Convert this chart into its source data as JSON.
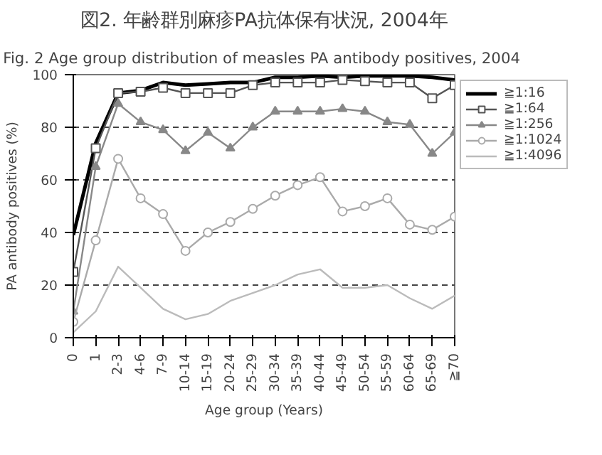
{
  "chart_data": {
    "type": "line",
    "title": "図2. 年齢群別麻疹PA抗体保有状況, 2004年",
    "subtitle": "Fig. 2  Age group distribution of measles PA antibody positives, 2004",
    "xlabel": "Age group (Years)",
    "ylabel": "PA antibody positives (%)",
    "categories": [
      "0",
      "1",
      "2-3",
      "4-6",
      "7-9",
      "10-14",
      "15-19",
      "20-24",
      "25-29",
      "30-34",
      "35-39",
      "40-44",
      "45-49",
      "50-54",
      "55-59",
      "60-64",
      "65-69",
      "≧70"
    ],
    "series": [
      {
        "name": "≧1:16",
        "color": "#000000",
        "marker": "none",
        "values": [
          39,
          74,
          93,
          94,
          97,
          96,
          96.5,
          97,
          97,
          99,
          99,
          99.5,
          99,
          99.5,
          99.5,
          99.5,
          99,
          98
        ]
      },
      {
        "name": "≧1:64",
        "color": "#555555",
        "marker": "square",
        "values": [
          25,
          72,
          93,
          93.5,
          95,
          93,
          93,
          93,
          96,
          97,
          97,
          97,
          98,
          97.5,
          97,
          97,
          91,
          96
        ]
      },
      {
        "name": "≧1:256",
        "color": "#888888",
        "marker": "triangle",
        "values": [
          10,
          65,
          89,
          82,
          79,
          71,
          78,
          72,
          80,
          86,
          86,
          86,
          87,
          86,
          82,
          81,
          70,
          78
        ]
      },
      {
        "name": "≧1:1024",
        "color": "#aaaaaa",
        "marker": "circle",
        "values": [
          6,
          37,
          68,
          53,
          47,
          33,
          40,
          44,
          49,
          54,
          58,
          61,
          48,
          50,
          53,
          43,
          41,
          46
        ]
      },
      {
        "name": "≧1:4096",
        "color": "#bbbbbb",
        "marker": "none",
        "values": [
          2,
          10,
          27,
          19,
          11,
          7,
          9,
          14,
          17,
          20,
          24,
          26,
          19,
          19,
          20,
          15,
          11,
          16
        ]
      }
    ],
    "ylim": [
      0,
      100
    ],
    "yticks": [
      0,
      20,
      40,
      60,
      80,
      100
    ],
    "grid": "y",
    "legend": "top right"
  }
}
